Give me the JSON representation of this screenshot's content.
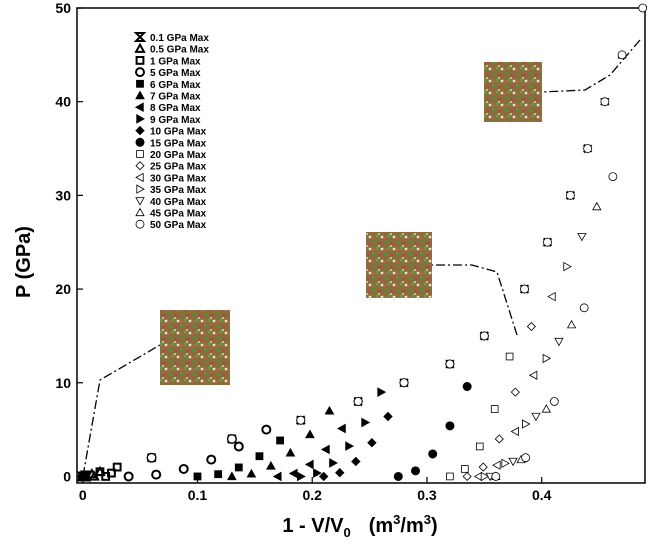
{
  "chart_data": {
    "type": "scatter",
    "xlabel_parts": [
      "1 - V/V",
      "0",
      "(m",
      "3",
      "/m",
      "3",
      ")"
    ],
    "ylabel": "P  (GPa)",
    "xlim": [
      -0.005,
      0.49
    ],
    "ylim": [
      -0.7,
      50
    ],
    "xticks": [
      0,
      0.1,
      0.2,
      0.3,
      0.4
    ],
    "yticks": [
      0,
      10,
      20,
      30,
      40,
      50
    ],
    "series": [
      {
        "name": "0.1 GPa Max",
        "marker": "hourglass",
        "fill": "none",
        "stroke_width": 2,
        "color": "#000",
        "x": [
          0,
          0.003,
          0.002
        ],
        "y": [
          0,
          0.1,
          0
        ]
      },
      {
        "name": "0.5 GPa Max",
        "marker": "triangle-up",
        "fill": "none",
        "stroke_width": 2,
        "color": "#000",
        "x": [
          0,
          0.008,
          0.015,
          0.01
        ],
        "y": [
          0,
          0.25,
          0.5,
          0
        ]
      },
      {
        "name": "1 GPa Max",
        "marker": "square",
        "fill": "none",
        "stroke_width": 2,
        "color": "#000",
        "x": [
          0,
          0.015,
          0.03,
          0.025,
          0.02
        ],
        "y": [
          0,
          0.5,
          1,
          0.36,
          0
        ]
      },
      {
        "name": "5 GPa Max",
        "marker": "circle",
        "fill": "none",
        "stroke_width": 2,
        "color": "#000",
        "x": [
          0,
          0.06,
          0.13,
          0.16,
          0.136,
          0.112,
          0.088,
          0.064,
          0.04
        ],
        "y": [
          0,
          2,
          4,
          5,
          3.2,
          1.8,
          0.8,
          0.2,
          0
        ]
      },
      {
        "name": "6 GPa Max",
        "marker": "square",
        "fill": "#000",
        "stroke_width": 1,
        "color": "#000",
        "x": [
          0,
          0.06,
          0.13,
          0.19,
          0.172,
          0.154,
          0.136,
          0.118,
          0.1
        ],
        "y": [
          0,
          2,
          4,
          6,
          3.84,
          2.16,
          0.96,
          0.24,
          0
        ]
      },
      {
        "name": "7 GPa Max",
        "marker": "triangle-up",
        "fill": "#000",
        "stroke_width": 1,
        "color": "#000",
        "x": [
          0,
          0.06,
          0.13,
          0.19,
          0.215,
          0.198,
          0.181,
          0.164,
          0.147,
          0.13
        ],
        "y": [
          0,
          2,
          4,
          6,
          7,
          4.48,
          2.52,
          1.12,
          0.28,
          0
        ]
      },
      {
        "name": "8 GPa Max",
        "marker": "triangle-left",
        "fill": "#000",
        "stroke_width": 1,
        "color": "#000",
        "x": [
          0,
          0.06,
          0.13,
          0.19,
          0.24,
          0.226,
          0.212,
          0.198,
          0.184,
          0.17
        ],
        "y": [
          0,
          2,
          4,
          6,
          8,
          5.12,
          2.88,
          1.28,
          0.32,
          0
        ]
      },
      {
        "name": "9 GPa Max",
        "marker": "triangle-right",
        "fill": "#000",
        "stroke_width": 1,
        "color": "#000",
        "x": [
          0,
          0.06,
          0.13,
          0.19,
          0.24,
          0.26,
          0.246,
          0.232,
          0.218,
          0.204,
          0.19
        ],
        "y": [
          0,
          2,
          4,
          6,
          8,
          9,
          5.76,
          3.24,
          1.44,
          0.36,
          0
        ]
      },
      {
        "name": "10 GPa Max",
        "marker": "diamond",
        "fill": "#000",
        "stroke_width": 1,
        "color": "#000",
        "x": [
          0,
          0.06,
          0.13,
          0.19,
          0.24,
          0.28,
          0.266,
          0.252,
          0.238,
          0.224,
          0.21
        ],
        "y": [
          0,
          2,
          4,
          6,
          8,
          10,
          6.4,
          3.6,
          1.6,
          0.4,
          0
        ]
      },
      {
        "name": "15 GPa Max",
        "marker": "circle",
        "fill": "#000",
        "stroke_width": 1,
        "color": "#000",
        "x": [
          0,
          0.06,
          0.13,
          0.19,
          0.24,
          0.28,
          0.32,
          0.35,
          0.335,
          0.32,
          0.305,
          0.29,
          0.275
        ],
        "y": [
          0,
          2,
          4,
          6,
          8,
          10,
          12,
          15,
          9.6,
          5.4,
          2.4,
          0.6,
          0
        ]
      },
      {
        "name": "20 GPa Max",
        "marker": "square",
        "fill": "#fff",
        "stroke_width": 0.8,
        "color": "#000",
        "x": [
          0.06,
          0.13,
          0.19,
          0.24,
          0.28,
          0.32,
          0.35,
          0.385,
          0.372,
          0.359,
          0.346,
          0.333,
          0.32
        ],
        "y": [
          2,
          4,
          6,
          8,
          10,
          12,
          15,
          20,
          12.8,
          7.2,
          3.2,
          0.8,
          0
        ]
      },
      {
        "name": "25 GPa Max",
        "marker": "diamond",
        "fill": "#fff",
        "stroke_width": 0.8,
        "color": "#000",
        "x": [
          0.06,
          0.13,
          0.19,
          0.24,
          0.28,
          0.32,
          0.35,
          0.385,
          0.405,
          0.391,
          0.377,
          0.363,
          0.349,
          0.335
        ],
        "y": [
          2,
          4,
          6,
          8,
          10,
          12,
          15,
          20,
          25,
          16,
          9,
          4,
          1,
          0
        ]
      },
      {
        "name": "30 GPa Max",
        "marker": "triangle-left",
        "fill": "#fff",
        "stroke_width": 0.8,
        "color": "#000",
        "x": [
          0.06,
          0.13,
          0.19,
          0.24,
          0.28,
          0.32,
          0.35,
          0.385,
          0.405,
          0.425,
          0.409,
          0.393,
          0.377,
          0.361,
          0.345
        ],
        "y": [
          2,
          4,
          6,
          8,
          10,
          12,
          15,
          20,
          25,
          30,
          19.2,
          10.8,
          4.8,
          1.2,
          0
        ]
      },
      {
        "name": "35 GPa Max",
        "marker": "triangle-right",
        "fill": "#fff",
        "stroke_width": 0.8,
        "color": "#000",
        "x": [
          0.06,
          0.13,
          0.19,
          0.24,
          0.28,
          0.32,
          0.35,
          0.385,
          0.405,
          0.425,
          0.44,
          0.422,
          0.404,
          0.386,
          0.368,
          0.35
        ],
        "y": [
          2,
          4,
          6,
          8,
          10,
          12,
          15,
          20,
          25,
          30,
          35,
          22.4,
          12.6,
          5.6,
          1.4,
          0
        ]
      },
      {
        "name": "40 GPa Max",
        "marker": "triangle-down",
        "fill": "#fff",
        "stroke_width": 0.8,
        "color": "#000",
        "x": [
          0.06,
          0.13,
          0.19,
          0.24,
          0.28,
          0.32,
          0.35,
          0.385,
          0.405,
          0.425,
          0.44,
          0.455,
          0.435,
          0.415,
          0.395,
          0.375,
          0.355
        ],
        "y": [
          2,
          4,
          6,
          8,
          10,
          12,
          15,
          20,
          25,
          30,
          35,
          40,
          25.6,
          14.4,
          6.4,
          1.6,
          0
        ]
      },
      {
        "name": "45 GPa Max",
        "marker": "triangle-up",
        "fill": "#fff",
        "stroke_width": 0.8,
        "color": "#000",
        "x": [
          0.06,
          0.13,
          0.19,
          0.24,
          0.28,
          0.32,
          0.35,
          0.385,
          0.405,
          0.425,
          0.44,
          0.455,
          0.47,
          0.448,
          0.426,
          0.404,
          0.382,
          0.36
        ],
        "y": [
          2,
          4,
          6,
          8,
          10,
          12,
          15,
          20,
          25,
          30,
          35,
          40,
          45,
          28.8,
          16.2,
          7.2,
          1.8,
          0
        ]
      },
      {
        "name": "50 GPa Max",
        "marker": "circle",
        "fill": "#fff",
        "stroke_width": 0.8,
        "color": "#000",
        "x": [
          0.06,
          0.13,
          0.19,
          0.24,
          0.28,
          0.32,
          0.35,
          0.385,
          0.405,
          0.425,
          0.44,
          0.455,
          0.47,
          0.488,
          0.462,
          0.437,
          0.411,
          0.386,
          0.36
        ],
        "y": [
          2,
          4,
          6,
          8,
          10,
          12,
          15,
          20,
          25,
          30,
          35,
          40,
          45,
          50,
          32,
          18,
          8,
          2,
          0
        ]
      }
    ]
  }
}
